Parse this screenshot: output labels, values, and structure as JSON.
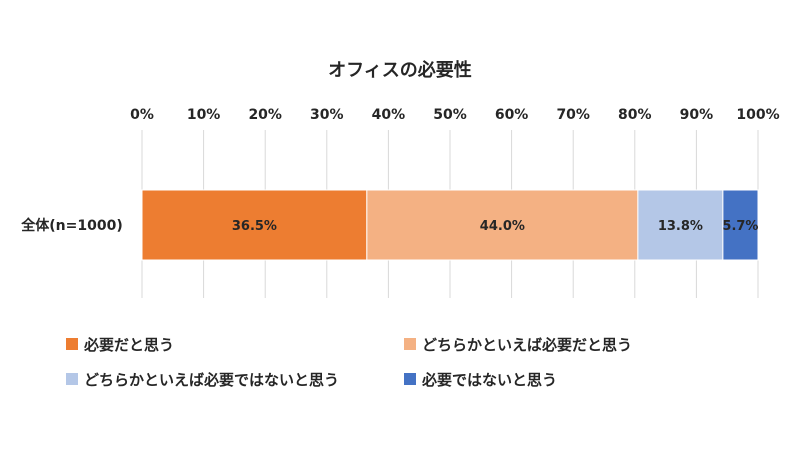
{
  "chart_data": {
    "type": "bar",
    "orientation": "horizontal",
    "stacked": true,
    "percent_stacked": true,
    "title": "オフィスの必要性",
    "categories": [
      "全体(n=1000)"
    ],
    "series": [
      {
        "name": "必要だと思う",
        "values": [
          36.5
        ],
        "label": "36.5%",
        "color": "#ED7D31"
      },
      {
        "name": "どちらかといえば必要だと思う",
        "values": [
          44.0
        ],
        "label": "44.0%",
        "color": "#F4B183"
      },
      {
        "name": "どちらかといえば必要ではないと思う",
        "values": [
          13.8
        ],
        "label": "13.8%",
        "color": "#B4C7E7"
      },
      {
        "name": "必要ではないと思う",
        "values": [
          5.7
        ],
        "label": "5.7%",
        "color": "#4472C4"
      }
    ],
    "xlim": [
      0,
      100
    ],
    "x_ticks": [
      "0%",
      "10%",
      "20%",
      "30%",
      "40%",
      "50%",
      "60%",
      "70%",
      "80%",
      "90%",
      "100%"
    ],
    "x_axis_position": "top",
    "grid": true,
    "legend_position": "bottom"
  }
}
